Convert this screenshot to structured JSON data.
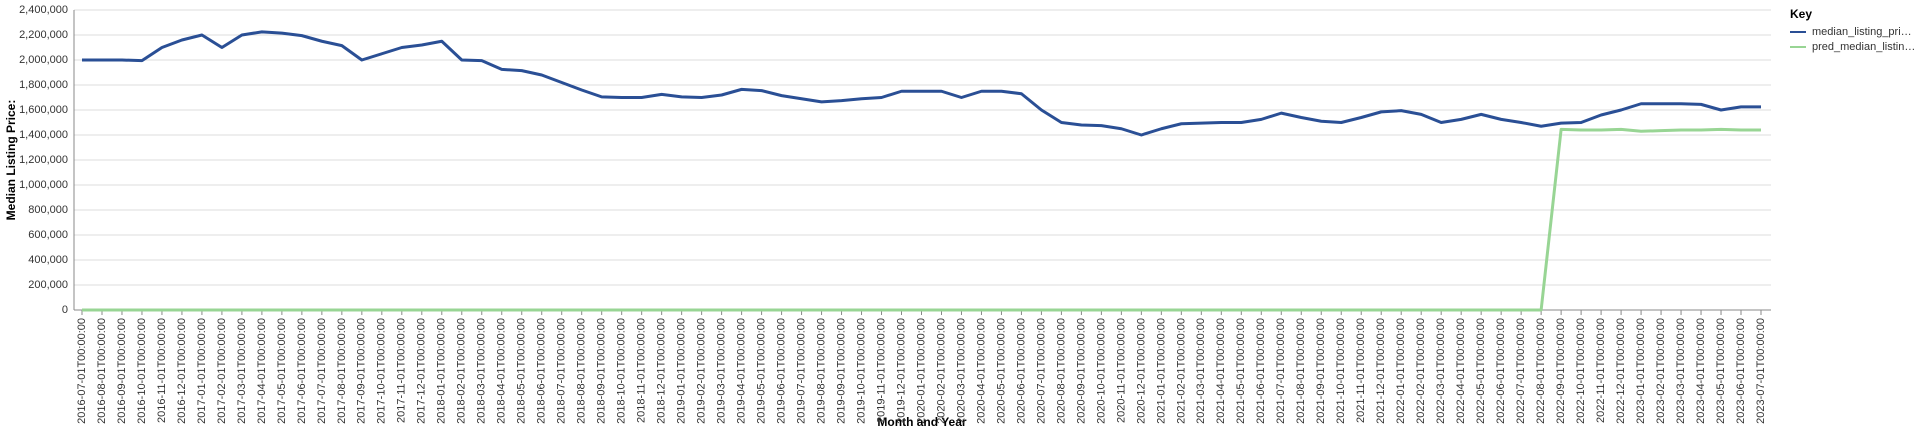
{
  "chart_data": {
    "type": "line",
    "y_label": "Median Listing Price:",
    "x_label": "Month and Year",
    "legend_title": "Key",
    "legend_position": "right",
    "grid": true,
    "categories": [
      "2016-07-01T00:00:00",
      "2016-08-01T00:00:00",
      "2016-09-01T00:00:00",
      "2016-10-01T00:00:00",
      "2016-11-01T00:00:00",
      "2016-12-01T00:00:00",
      "2017-01-01T00:00:00",
      "2017-02-01T00:00:00",
      "2017-03-01T00:00:00",
      "2017-04-01T00:00:00",
      "2017-05-01T00:00:00",
      "2017-06-01T00:00:00",
      "2017-07-01T00:00:00",
      "2017-08-01T00:00:00",
      "2017-09-01T00:00:00",
      "2017-10-01T00:00:00",
      "2017-11-01T00:00:00",
      "2017-12-01T00:00:00",
      "2018-01-01T00:00:00",
      "2018-02-01T00:00:00",
      "2018-03-01T00:00:00",
      "2018-04-01T00:00:00",
      "2018-05-01T00:00:00",
      "2018-06-01T00:00:00",
      "2018-07-01T00:00:00",
      "2018-08-01T00:00:00",
      "2018-09-01T00:00:00",
      "2018-10-01T00:00:00",
      "2018-11-01T00:00:00",
      "2018-12-01T00:00:00",
      "2019-01-01T00:00:00",
      "2019-02-01T00:00:00",
      "2019-03-01T00:00:00",
      "2019-04-01T00:00:00",
      "2019-05-01T00:00:00",
      "2019-06-01T00:00:00",
      "2019-07-01T00:00:00",
      "2019-08-01T00:00:00",
      "2019-09-01T00:00:00",
      "2019-10-01T00:00:00",
      "2019-11-01T00:00:00",
      "2019-12-01T00:00:00",
      "2020-01-01T00:00:00",
      "2020-02-01T00:00:00",
      "2020-03-01T00:00:00",
      "2020-04-01T00:00:00",
      "2020-05-01T00:00:00",
      "2020-06-01T00:00:00",
      "2020-07-01T00:00:00",
      "2020-08-01T00:00:00",
      "2020-09-01T00:00:00",
      "2020-10-01T00:00:00",
      "2020-11-01T00:00:00",
      "2020-12-01T00:00:00",
      "2021-01-01T00:00:00",
      "2021-02-01T00:00:00",
      "2021-03-01T00:00:00",
      "2021-04-01T00:00:00",
      "2021-05-01T00:00:00",
      "2021-06-01T00:00:00",
      "2021-07-01T00:00:00",
      "2021-08-01T00:00:00",
      "2021-09-01T00:00:00",
      "2021-10-01T00:00:00",
      "2021-11-01T00:00:00",
      "2021-12-01T00:00:00",
      "2022-01-01T00:00:00",
      "2022-02-01T00:00:00",
      "2022-03-01T00:00:00",
      "2022-04-01T00:00:00",
      "2022-05-01T00:00:00",
      "2022-06-01T00:00:00",
      "2022-07-01T00:00:00",
      "2022-08-01T00:00:00",
      "2022-09-01T00:00:00",
      "2022-10-01T00:00:00",
      "2022-11-01T00:00:00",
      "2022-12-01T00:00:00",
      "2023-01-01T00:00:00",
      "2023-02-01T00:00:00",
      "2023-03-01T00:00:00",
      "2023-04-01T00:00:00",
      "2023-05-01T00:00:00",
      "2023-06-01T00:00:00",
      "2023-07-01T00:00:00"
    ],
    "series": [
      {
        "name": "median_listing_pri…",
        "color": "#2a4f95",
        "values": [
          2000000,
          2000000,
          2000000,
          1995000,
          2100000,
          2160000,
          2200000,
          2100000,
          2200000,
          2225000,
          2215000,
          2195000,
          2150000,
          2115000,
          2000000,
          2050000,
          2100000,
          2120000,
          2150000,
          2000000,
          1995000,
          1925000,
          1915000,
          1880000,
          1820000,
          1760000,
          1705000,
          1700000,
          1700000,
          1725000,
          1705000,
          1700000,
          1720000,
          1765000,
          1755000,
          1715000,
          1690000,
          1665000,
          1675000,
          1690000,
          1700000,
          1750000,
          1750000,
          1750000,
          1700000,
          1750000,
          1750000,
          1730000,
          1600000,
          1500000,
          1480000,
          1475000,
          1450000,
          1400000,
          1450000,
          1490000,
          1495000,
          1500000,
          1500000,
          1525000,
          1575000,
          1540000,
          1510000,
          1500000,
          1540000,
          1585000,
          1595000,
          1565000,
          1500000,
          1525000,
          1565000,
          1525000,
          1500000,
          1470000,
          1495000,
          1500000,
          1560000,
          1600000,
          1650000,
          1650000,
          1650000,
          1645000,
          1600000,
          1625000,
          1625000
        ]
      },
      {
        "name": "pred_median_listin…",
        "color": "#98d594",
        "values": [
          0,
          0,
          0,
          0,
          0,
          0,
          0,
          0,
          0,
          0,
          0,
          0,
          0,
          0,
          0,
          0,
          0,
          0,
          0,
          0,
          0,
          0,
          0,
          0,
          0,
          0,
          0,
          0,
          0,
          0,
          0,
          0,
          0,
          0,
          0,
          0,
          0,
          0,
          0,
          0,
          0,
          0,
          0,
          0,
          0,
          0,
          0,
          0,
          0,
          0,
          0,
          0,
          0,
          0,
          0,
          0,
          0,
          0,
          0,
          0,
          0,
          0,
          0,
          0,
          0,
          0,
          0,
          0,
          0,
          0,
          0,
          0,
          0,
          0,
          1445000,
          1440000,
          1440000,
          1445000,
          1430000,
          1435000,
          1440000,
          1440000,
          1445000,
          1440000,
          1440000
        ]
      }
    ],
    "ylim": [
      0,
      2400000
    ],
    "yticks": [
      0,
      {
        "value": 200000,
        "label": "200,000"
      },
      {
        "value": 400000,
        "label": "400,000"
      },
      {
        "value": 600000,
        "label": "600,000"
      },
      {
        "value": 800000,
        "label": "800,000"
      },
      {
        "value": 1000000,
        "label": "1,000,000"
      },
      {
        "value": 1200000,
        "label": "1,200,000"
      },
      {
        "value": 1400000,
        "label": "1,400,000"
      },
      {
        "value": 1600000,
        "label": "1,600,000"
      },
      {
        "value": 1800000,
        "label": "1,800,000"
      },
      {
        "value": 2000000,
        "label": "2,000,000"
      },
      {
        "value": 2200000,
        "label": "2,200,000"
      },
      {
        "value": 2400000,
        "label": "2,400,000"
      }
    ]
  }
}
